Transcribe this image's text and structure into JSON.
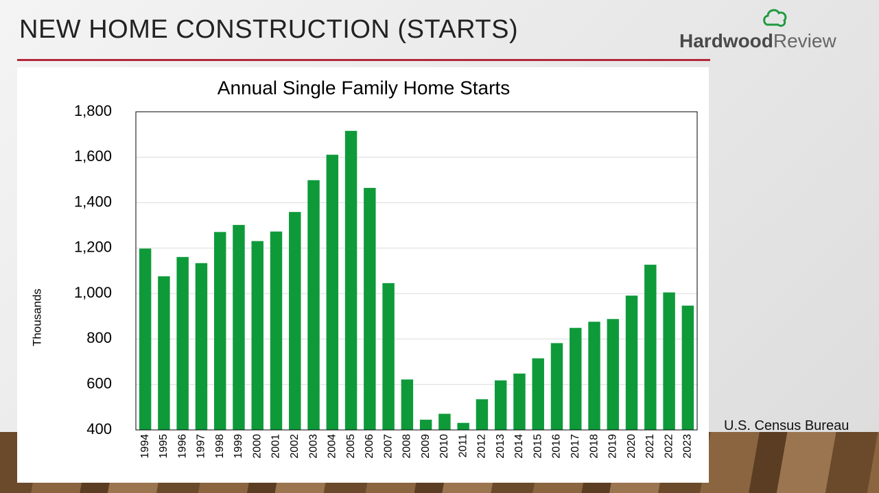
{
  "slide": {
    "title": "NEW HOME CONSTRUCTION (STARTS)",
    "logo_bold": "Hardwood",
    "logo_light": "Review",
    "source": "U.S. Census Bureau"
  },
  "chart_data": {
    "type": "bar",
    "title": "Annual Single Family Home Starts",
    "y_label": "Thousands",
    "categories": [
      "1994",
      "1995",
      "1996",
      "1997",
      "1998",
      "1999",
      "2000",
      "2001",
      "2002",
      "2003",
      "2004",
      "2005",
      "2006",
      "2007",
      "2008",
      "2009",
      "2010",
      "2011",
      "2012",
      "2013",
      "2014",
      "2015",
      "2016",
      "2017",
      "2018",
      "2019",
      "2020",
      "2021",
      "2022",
      "2023"
    ],
    "values": [
      1198,
      1076,
      1161,
      1134,
      1271,
      1302,
      1231,
      1273,
      1359,
      1499,
      1611,
      1716,
      1465,
      1046,
      622,
      445,
      471,
      431,
      535,
      618,
      648,
      715,
      782,
      849,
      876,
      888,
      991,
      1127,
      1005,
      947
    ],
    "color": "#0f9a3a",
    "ylim": [
      400,
      1800
    ],
    "yticks": [
      400,
      600,
      800,
      {
        "value": 1000,
        "label": "1,000"
      },
      {
        "value": 1200,
        "label": "1,200"
      },
      {
        "value": 1400,
        "label": "1,400"
      },
      {
        "value": 1600,
        "label": "1,600"
      },
      {
        "value": 1800,
        "label": "1,800"
      }
    ],
    "grid": true
  }
}
